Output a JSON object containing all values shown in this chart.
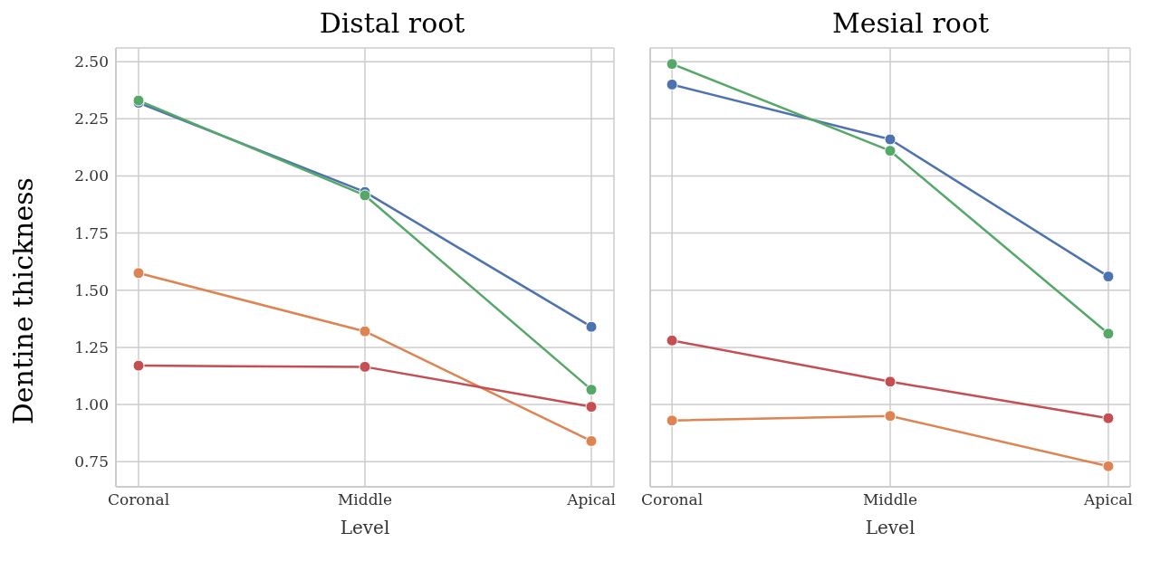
{
  "chart_data": [
    {
      "type": "line",
      "title": "Distal root",
      "xlabel": "Level",
      "ylabel": "Dentine thickness",
      "categories": [
        "Coronal",
        "Middle",
        "Apical"
      ],
      "ylim": [
        0.64,
        2.56
      ],
      "yticks": [
        {
          "value": 0.75,
          "label": "0.75"
        },
        {
          "value": 1,
          "label": "1.00"
        },
        {
          "value": 1.25,
          "label": "1.25"
        },
        {
          "value": 1.5,
          "label": "1.50"
        },
        {
          "value": 1.75,
          "label": "1.75"
        },
        {
          "value": 2,
          "label": "2.00"
        },
        {
          "value": 2.25,
          "label": "2.25"
        },
        {
          "value": 2.5,
          "label": "2.50"
        }
      ],
      "grid": true,
      "legend": false,
      "marker": "circle",
      "line_style": "solid",
      "series": [
        {
          "color": "#4c72b0",
          "values": [
            2.32,
            1.93,
            1.34
          ]
        },
        {
          "color": "#dd8452",
          "values": [
            1.575,
            1.32,
            0.84
          ]
        },
        {
          "color": "#55a868",
          "values": [
            2.33,
            1.915,
            1.065
          ]
        },
        {
          "color": "#c44e52",
          "values": [
            1.17,
            1.165,
            0.99
          ]
        }
      ]
    },
    {
      "type": "line",
      "title": "Mesial root",
      "xlabel": "Level",
      "categories": [
        "Coronal",
        "Middle",
        "Apical"
      ],
      "ylim": [
        0.64,
        2.56
      ],
      "yticks": [
        0.75,
        1,
        1.25,
        1.5,
        1.75,
        2,
        2.25,
        2.5
      ],
      "tick_labels": "x",
      "grid": true,
      "legend": false,
      "marker": "circle",
      "line_style": "solid",
      "series": [
        {
          "color": "#4c72b0",
          "values": [
            2.4,
            2.16,
            1.56
          ]
        },
        {
          "color": "#dd8452",
          "values": [
            0.93,
            0.95,
            0.73
          ]
        },
        {
          "color": "#55a868",
          "values": [
            2.49,
            2.11,
            1.31
          ]
        },
        {
          "color": "#c44e52",
          "values": [
            1.28,
            1.1,
            0.94
          ]
        }
      ]
    }
  ]
}
